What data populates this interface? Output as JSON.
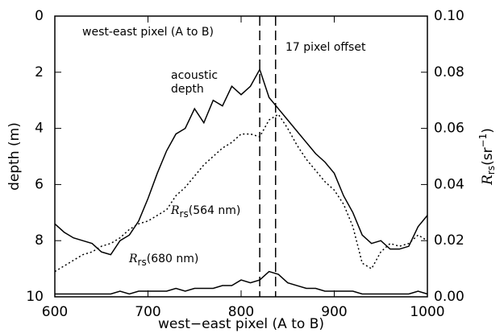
{
  "chart_data": {
    "type": "line",
    "xlabel": "west−east pixel (A to B)",
    "ylabel": "depth (m)",
    "y2label": {
      "italic": "R",
      "sub": "rs",
      "text": "(sr",
      "sup": "−1",
      "end": ")"
    },
    "inner_title": "west-east pixel (A to B)",
    "offset_label": "17 pixel offset",
    "vlines": [
      820,
      837
    ],
    "xlim": [
      600,
      1000
    ],
    "xticks": [
      600,
      700,
      800,
      900,
      1000
    ],
    "ylim": [
      10,
      0
    ],
    "yticks": [
      0,
      2,
      4,
      6,
      8,
      10
    ],
    "y2lim": [
      0,
      0.1
    ],
    "y2ticks": [
      {
        "value": 0,
        "label": "0.00"
      },
      {
        "value": 0.02,
        "label": "0.02"
      },
      {
        "value": 0.04,
        "label": "0.04"
      },
      {
        "value": 0.06,
        "label": "0.06"
      },
      {
        "value": 0.08,
        "label": "0.08"
      },
      {
        "value": 0.1,
        "label": "0.10"
      }
    ],
    "x": [
      600,
      610,
      620,
      630,
      640,
      650,
      660,
      670,
      680,
      690,
      700,
      710,
      720,
      730,
      740,
      750,
      760,
      770,
      780,
      790,
      800,
      810,
      820,
      830,
      840,
      850,
      860,
      870,
      880,
      890,
      900,
      910,
      920,
      930,
      940,
      950,
      960,
      970,
      980,
      990,
      1000
    ],
    "series": [
      {
        "name": [
          "acoustic",
          "depth"
        ],
        "color": "#000",
        "style": "solid",
        "values": [
          7.4,
          7.7,
          7.9,
          8.0,
          8.1,
          8.4,
          8.5,
          8.0,
          7.8,
          7.3,
          6.5,
          5.6,
          4.8,
          4.2,
          4.0,
          3.3,
          3.8,
          3.0,
          3.2,
          2.5,
          2.8,
          2.5,
          1.9,
          2.9,
          3.3,
          3.7,
          4.1,
          4.5,
          4.9,
          5.2,
          5.6,
          6.4,
          7.0,
          7.8,
          8.1,
          8.0,
          8.3,
          8.3,
          8.2,
          7.5,
          7.1
        ]
      },
      {
        "name": {
          "italic": "R",
          "sub": "rs",
          "text": "(564 nm)"
        },
        "color": "#000",
        "style": "dotted",
        "axis": "y2",
        "values": [
          0.009,
          0.011,
          0.013,
          0.015,
          0.016,
          0.018,
          0.019,
          0.021,
          0.024,
          0.026,
          0.027,
          0.029,
          0.031,
          0.036,
          0.039,
          0.043,
          0.047,
          0.05,
          0.053,
          0.055,
          0.058,
          0.058,
          0.057,
          0.063,
          0.065,
          0.06,
          0.054,
          0.049,
          0.045,
          0.041,
          0.038,
          0.033,
          0.025,
          0.012,
          0.01,
          0.016,
          0.019,
          0.018,
          0.019,
          0.022,
          0.02
        ]
      },
      {
        "name": {
          "italic": "R",
          "sub": "rs",
          "text": "(680 nm)"
        },
        "color": "#000",
        "style": "solid",
        "axis": "y2",
        "values": [
          0.001,
          0.001,
          0.001,
          0.001,
          0.001,
          0.001,
          0.001,
          0.002,
          0.001,
          0.002,
          0.002,
          0.002,
          0.002,
          0.003,
          0.002,
          0.003,
          0.003,
          0.003,
          0.004,
          0.004,
          0.006,
          0.005,
          0.006,
          0.009,
          0.008,
          0.005,
          0.004,
          0.003,
          0.003,
          0.002,
          0.002,
          0.002,
          0.002,
          0.001,
          0.001,
          0.001,
          0.001,
          0.001,
          0.001,
          0.002,
          0.001
        ]
      }
    ]
  }
}
